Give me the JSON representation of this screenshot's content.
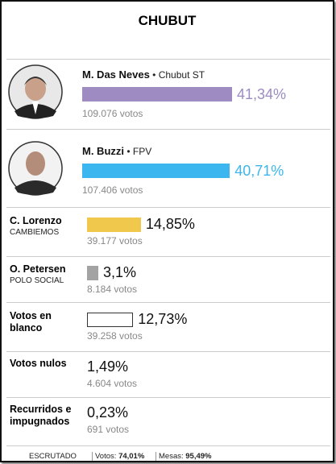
{
  "title": "CHUBUT",
  "rows": [
    {
      "name": "M. Das Neves",
      "party": "Chubut ST",
      "bar": 41.34,
      "percent": "41,34%",
      "votes": "109.076 votos",
      "color": "#9d8bc2"
    },
    {
      "name": "M. Buzzi",
      "party": "FPV",
      "bar": 40.71,
      "percent": "40,71%",
      "votes": "107.406 votos",
      "color": "#3bb6ee"
    },
    {
      "name": "C. Lorenzo",
      "party": "CAMBIEMOS",
      "bar": 14.85,
      "percent": "14,85%",
      "votes": "39.177 votos",
      "color": "#f0c94c"
    },
    {
      "name": "O. Petersen",
      "party": "POLO SOCIAL",
      "bar": 3.1,
      "percent": "3,1%",
      "votes": "8.184 votos",
      "color": "#a3a3a3"
    },
    {
      "name": "Votos en blanco",
      "bar": 12.73,
      "percent": "12,73%",
      "votes": "39.258 votos",
      "color": "#ffffff"
    },
    {
      "name": "Votos nulos",
      "percent": "1,49%",
      "votes": "4.604 votos"
    },
    {
      "name": "Recurridos e impugnados",
      "percent": "0,23%",
      "votes": "691 votos"
    }
  ],
  "footer": {
    "label": "ESCRUTADO",
    "votes_label": "Votos:",
    "votes": "74,01%",
    "tables_label": "Mesas:",
    "tables": "95,49%"
  }
}
